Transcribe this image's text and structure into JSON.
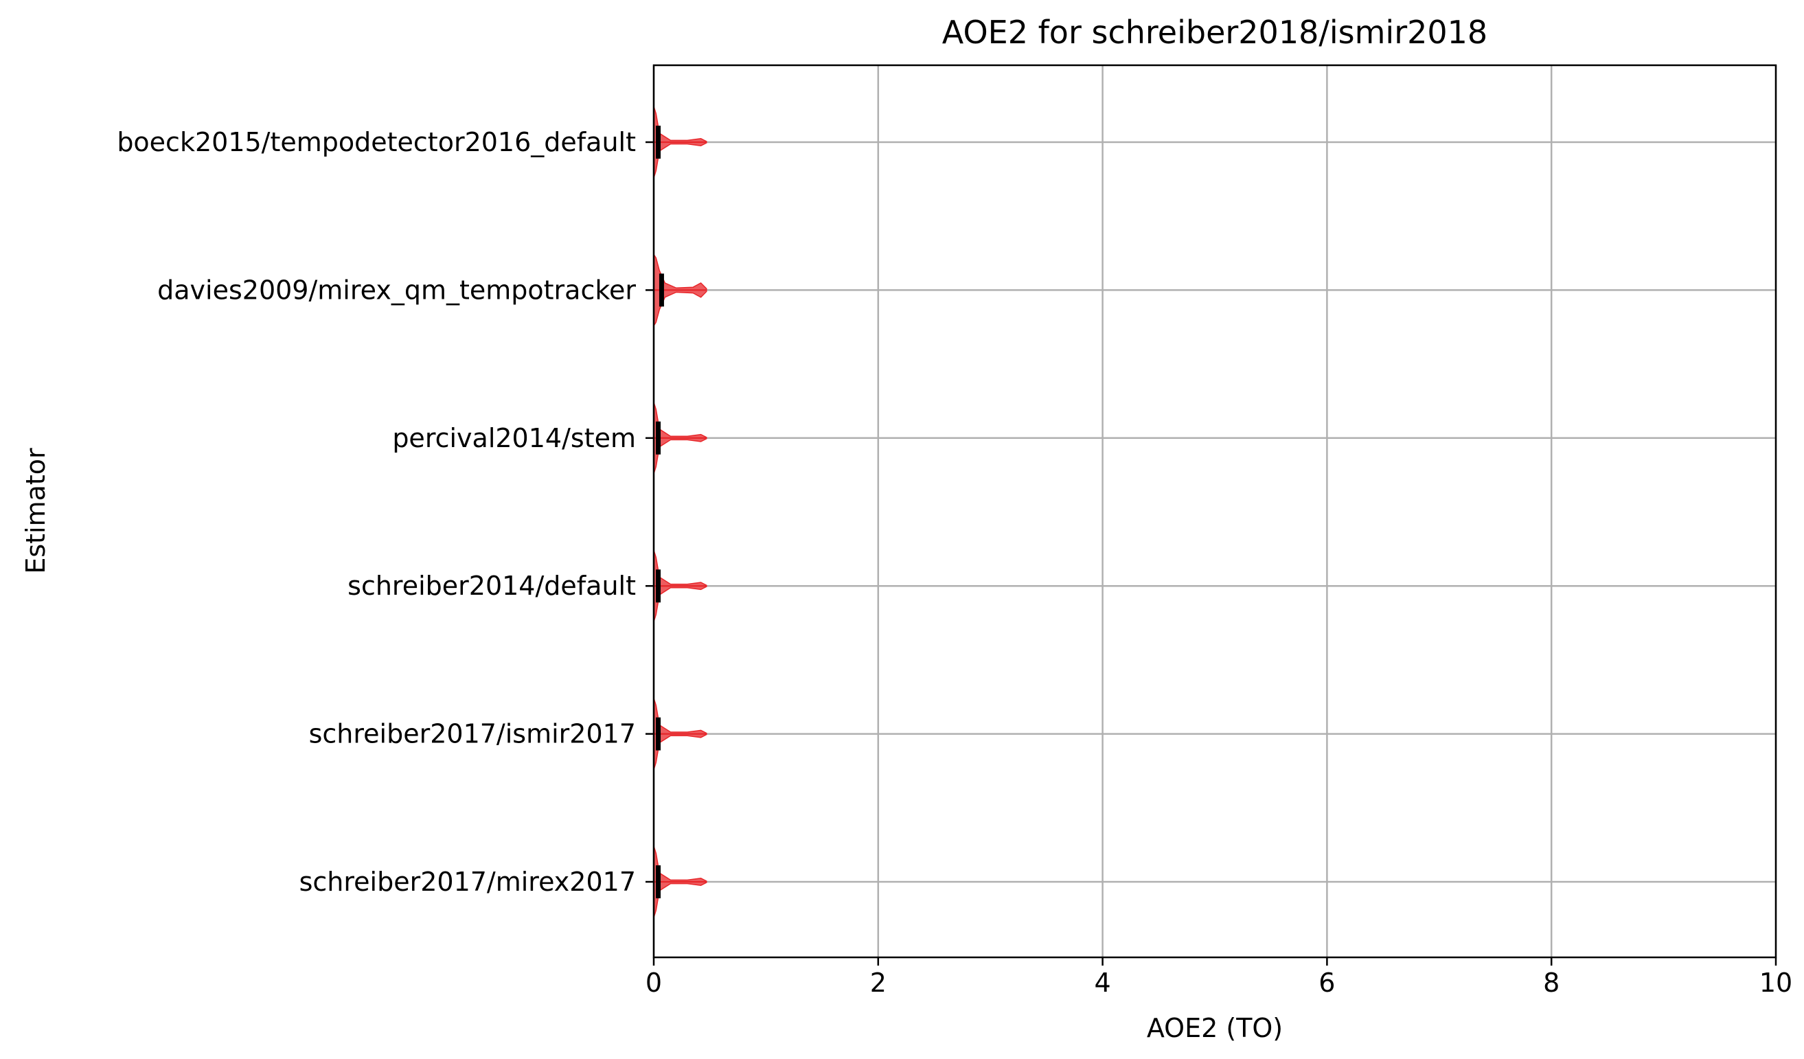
{
  "chart_data": {
    "type": "violin",
    "orientation": "horizontal",
    "title": "AOE2 for schreiber2018/ismir2018",
    "xlabel": "AOE2 (TO)",
    "ylabel": "Estimator",
    "xlim": [
      0,
      10
    ],
    "xticks": [
      0,
      2,
      4,
      6,
      8,
      10
    ],
    "xtick_labels": [
      "0",
      "2",
      "4",
      "6",
      "8",
      "10"
    ],
    "grid": true,
    "colors": {
      "violin": "#e8262a",
      "median": "#000000",
      "grid": "#b0b0b0",
      "axes": "#000000"
    },
    "categories": [
      "boeck2015/tempodetector2016_default",
      "davies2009/mirex_qm_tempotracker",
      "percival2014/stem",
      "schreiber2014/default",
      "schreiber2017/ismir2017",
      "schreiber2017/mirex2017"
    ],
    "series": [
      {
        "estimator": "boeck2015/tempodetector2016_default",
        "min": 0.0,
        "max": 0.47,
        "median": 0.04,
        "density": [
          [
            0.0,
            1.0
          ],
          [
            0.02,
            0.8
          ],
          [
            0.05,
            0.25
          ],
          [
            0.15,
            0.05
          ],
          [
            0.3,
            0.05
          ],
          [
            0.42,
            0.1
          ],
          [
            0.47,
            0.02
          ]
        ]
      },
      {
        "estimator": "davies2009/mirex_qm_tempotracker",
        "min": 0.0,
        "max": 0.47,
        "median": 0.07,
        "density": [
          [
            0.0,
            1.0
          ],
          [
            0.02,
            0.9
          ],
          [
            0.05,
            0.55
          ],
          [
            0.1,
            0.2
          ],
          [
            0.2,
            0.06
          ],
          [
            0.35,
            0.08
          ],
          [
            0.42,
            0.2
          ],
          [
            0.47,
            0.04
          ]
        ]
      },
      {
        "estimator": "percival2014/stem",
        "min": 0.0,
        "max": 0.47,
        "median": 0.04,
        "density": [
          [
            0.0,
            1.0
          ],
          [
            0.02,
            0.8
          ],
          [
            0.05,
            0.25
          ],
          [
            0.15,
            0.05
          ],
          [
            0.3,
            0.05
          ],
          [
            0.42,
            0.1
          ],
          [
            0.47,
            0.02
          ]
        ]
      },
      {
        "estimator": "schreiber2014/default",
        "min": 0.0,
        "max": 0.47,
        "median": 0.04,
        "density": [
          [
            0.0,
            1.0
          ],
          [
            0.02,
            0.8
          ],
          [
            0.05,
            0.25
          ],
          [
            0.15,
            0.05
          ],
          [
            0.3,
            0.05
          ],
          [
            0.42,
            0.1
          ],
          [
            0.47,
            0.02
          ]
        ]
      },
      {
        "estimator": "schreiber2017/ismir2017",
        "min": 0.0,
        "max": 0.47,
        "median": 0.04,
        "density": [
          [
            0.0,
            1.0
          ],
          [
            0.02,
            0.8
          ],
          [
            0.05,
            0.25
          ],
          [
            0.15,
            0.05
          ],
          [
            0.3,
            0.05
          ],
          [
            0.42,
            0.1
          ],
          [
            0.47,
            0.02
          ]
        ]
      },
      {
        "estimator": "schreiber2017/mirex2017",
        "min": 0.0,
        "max": 0.47,
        "median": 0.04,
        "density": [
          [
            0.0,
            1.0
          ],
          [
            0.02,
            0.8
          ],
          [
            0.05,
            0.25
          ],
          [
            0.15,
            0.05
          ],
          [
            0.3,
            0.05
          ],
          [
            0.42,
            0.1
          ],
          [
            0.47,
            0.02
          ]
        ]
      }
    ]
  }
}
